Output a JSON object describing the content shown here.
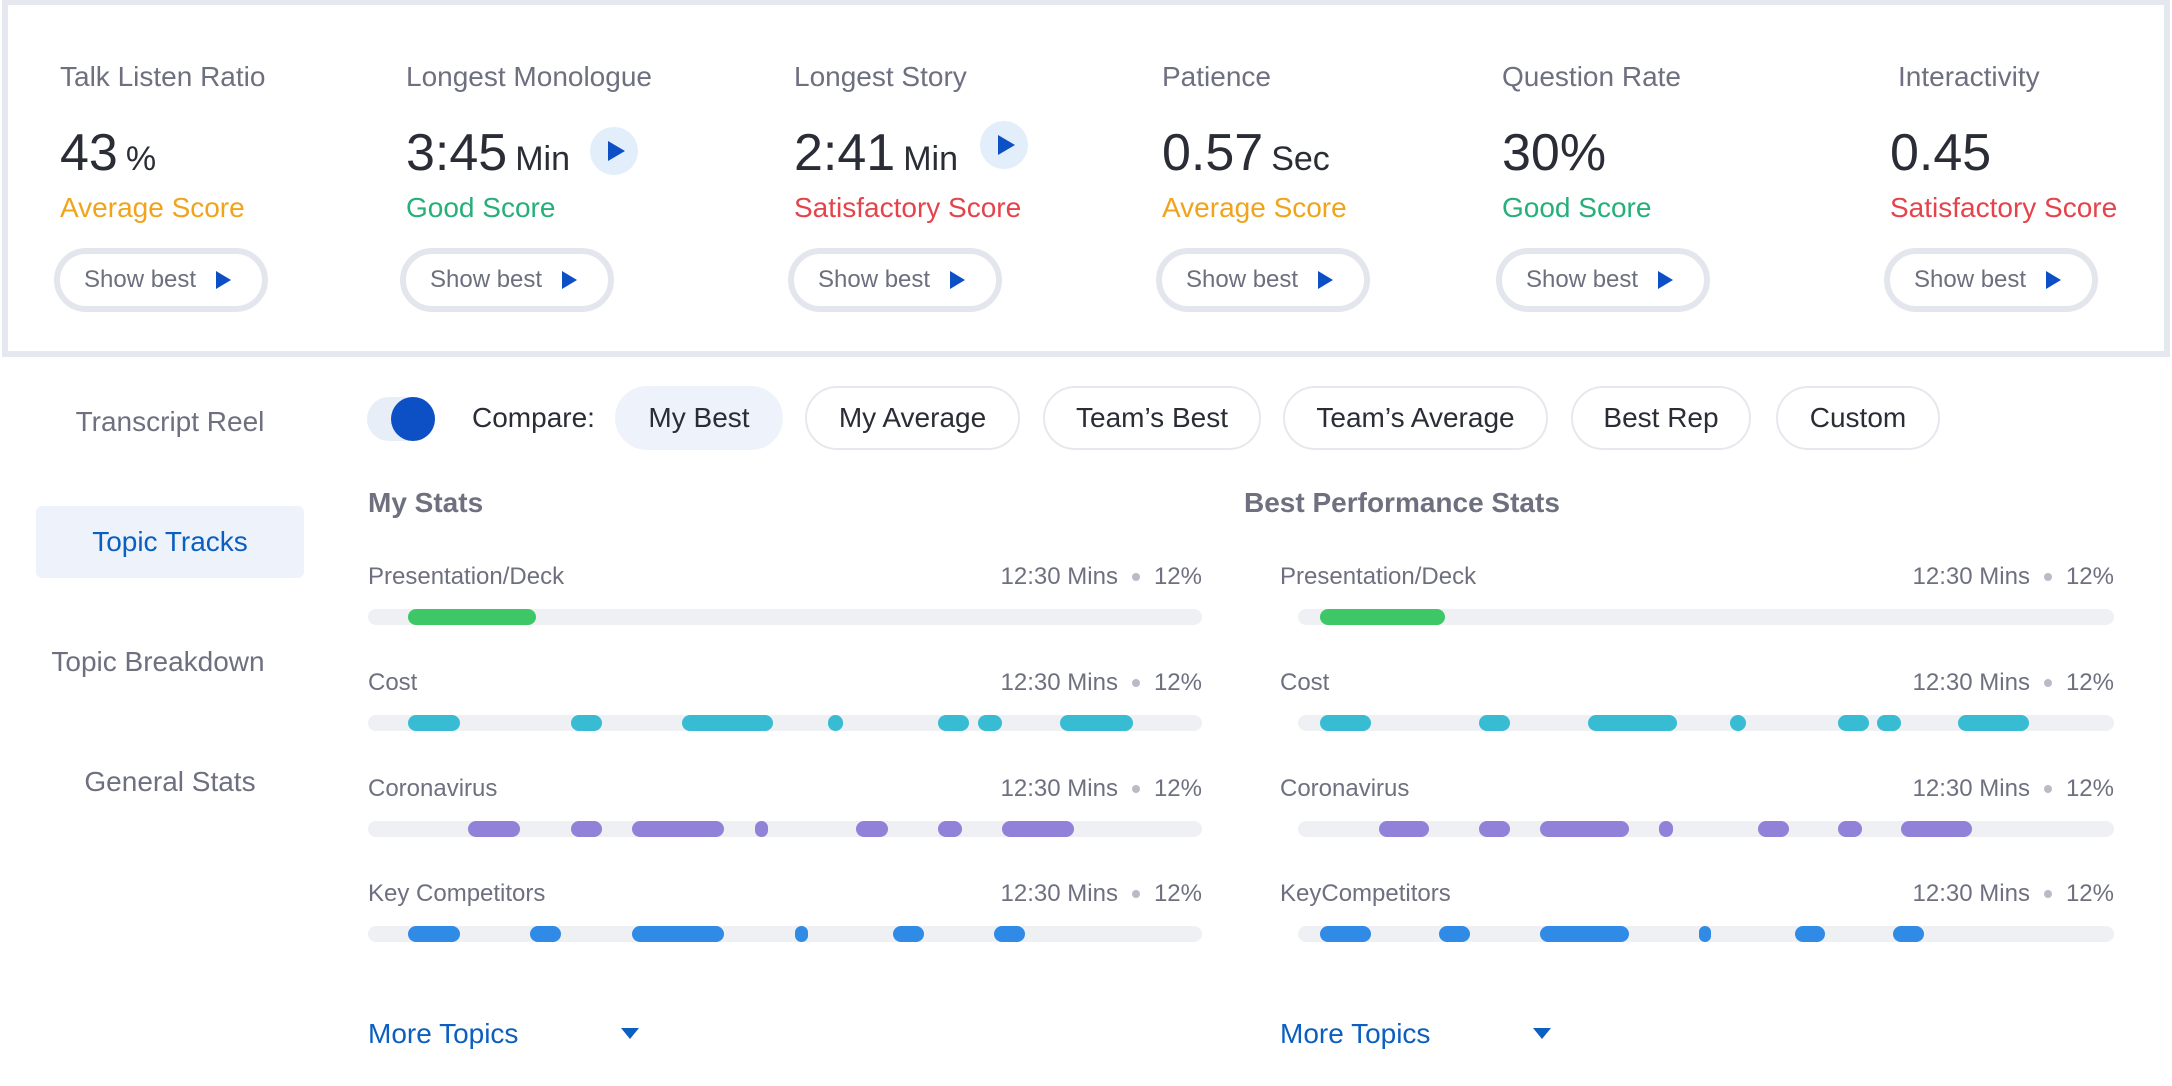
{
  "colors": {
    "accent": "#0d4fc4",
    "link": "#0b5fc0",
    "score_average": "#f0a41c",
    "score_good": "#25b07a",
    "score_satisfactory": "#e5434b",
    "track_presentation": "#3ec767",
    "track_cost": "#38bcd3",
    "track_coronavirus": "#9181d8",
    "track_competitors": "#2f8be6"
  },
  "metrics": [
    {
      "title": "Talk Listen Ratio",
      "value": "43",
      "unit": "%",
      "score": "Average Score",
      "button": "Show best",
      "has_play": false
    },
    {
      "title": "Longest Monologue",
      "value": "3:45",
      "unit": "Min",
      "score": "Good Score",
      "button": "Show best",
      "has_play": true
    },
    {
      "title": "Longest Story",
      "value": "2:41",
      "unit": "Min",
      "score": "Satisfactory Score",
      "button": "Show best",
      "has_play": true
    },
    {
      "title": "Patience",
      "value": "0.57",
      "unit": "Sec",
      "score": "Average Score",
      "button": "Show best",
      "has_play": false
    },
    {
      "title": "Question Rate",
      "value": "30%",
      "unit": "",
      "score": "Good Score",
      "button": "Show best",
      "has_play": false
    },
    {
      "title": "Interactivity",
      "value": "0.45",
      "unit": "",
      "score": "Satisfactory Score",
      "button": "Show best",
      "has_play": false
    }
  ],
  "sidebar": {
    "items": [
      {
        "label": "Transcript Reel",
        "active": false
      },
      {
        "label": "Topic Tracks",
        "active": true
      },
      {
        "label": "Topic Breakdown",
        "active": false
      },
      {
        "label": "General Stats",
        "active": false
      }
    ]
  },
  "compare": {
    "toggle_on": true,
    "label": "Compare:",
    "options": [
      {
        "label": "My Best",
        "selected": true
      },
      {
        "label": "My Average",
        "selected": false
      },
      {
        "label": "Team’s Best",
        "selected": false
      },
      {
        "label": "Team’s Average",
        "selected": false
      },
      {
        "label": "Best Rep",
        "selected": false
      },
      {
        "label": "Custom",
        "selected": false
      }
    ]
  },
  "my_stats": {
    "title": "My Stats",
    "topics": [
      {
        "name": "Presentation/Deck",
        "duration": "12:30 Mins",
        "percent": "12%",
        "color": "#3ec767",
        "segments": [
          [
            0.048,
            0.201
          ]
        ]
      },
      {
        "name": "Cost",
        "duration": "12:30 Mins",
        "percent": "12%",
        "color": "#38bcd3",
        "segments": [
          [
            0.048,
            0.11
          ],
          [
            0.243,
            0.281
          ],
          [
            0.376,
            0.486
          ],
          [
            0.551,
            0.57
          ],
          [
            0.683,
            0.721
          ],
          [
            0.731,
            0.76
          ],
          [
            0.83,
            0.917
          ]
        ]
      },
      {
        "name": "Coronavirus",
        "duration": "12:30 Mins",
        "percent": "12%",
        "color": "#9181d8",
        "segments": [
          [
            0.12,
            0.182
          ],
          [
            0.243,
            0.281
          ],
          [
            0.317,
            0.427
          ],
          [
            0.464,
            0.48
          ],
          [
            0.585,
            0.623
          ],
          [
            0.683,
            0.712
          ],
          [
            0.76,
            0.847
          ]
        ]
      },
      {
        "name": "Key Competitors",
        "duration": "12:30 Mins",
        "percent": "12%",
        "color": "#2f8be6",
        "segments": [
          [
            0.048,
            0.11
          ],
          [
            0.194,
            0.232
          ],
          [
            0.317,
            0.427
          ],
          [
            0.512,
            0.527
          ],
          [
            0.63,
            0.667
          ],
          [
            0.75,
            0.788
          ]
        ]
      }
    ],
    "more_label": "More Topics"
  },
  "best_stats": {
    "title": "Best Performance Stats",
    "topics": [
      {
        "name": "Presentation/Deck",
        "duration": "12:30 Mins",
        "percent": "12%",
        "color": "#3ec767",
        "segments": [
          [
            0.027,
            0.18
          ]
        ]
      },
      {
        "name": "Cost",
        "duration": "12:30 Mins",
        "percent": "12%",
        "color": "#38bcd3",
        "segments": [
          [
            0.027,
            0.089
          ],
          [
            0.222,
            0.26
          ],
          [
            0.355,
            0.465
          ],
          [
            0.53,
            0.549
          ],
          [
            0.662,
            0.7
          ],
          [
            0.71,
            0.739
          ],
          [
            0.809,
            0.896
          ]
        ]
      },
      {
        "name": "Coronavirus",
        "duration": "12:30 Mins",
        "percent": "12%",
        "color": "#9181d8",
        "segments": [
          [
            0.099,
            0.161
          ],
          [
            0.222,
            0.26
          ],
          [
            0.296,
            0.406
          ],
          [
            0.443,
            0.459
          ],
          [
            0.564,
            0.602
          ],
          [
            0.662,
            0.691
          ],
          [
            0.739,
            0.826
          ]
        ]
      },
      {
        "name": "KeyCompetitors",
        "duration": "12:30 Mins",
        "percent": "12%",
        "color": "#2f8be6",
        "segments": [
          [
            0.027,
            0.089
          ],
          [
            0.173,
            0.211
          ],
          [
            0.296,
            0.406
          ],
          [
            0.491,
            0.506
          ],
          [
            0.609,
            0.646
          ],
          [
            0.729,
            0.767
          ]
        ]
      }
    ],
    "more_label": "More Topics"
  }
}
